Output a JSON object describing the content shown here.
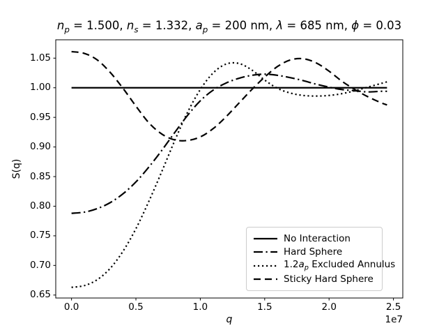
{
  "figure": {
    "background": "#ffffff",
    "title_segments": [
      {
        "t": "n",
        "i": true
      },
      {
        "t": "p",
        "i": true,
        "sub": true
      },
      {
        "t": " = 1.500, "
      },
      {
        "t": "n",
        "i": true
      },
      {
        "t": "s",
        "i": true,
        "sub": true
      },
      {
        "t": " = 1.332, "
      },
      {
        "t": "a",
        "i": true
      },
      {
        "t": "p",
        "i": true,
        "sub": true
      },
      {
        "t": " = 200 nm, "
      },
      {
        "t": "λ",
        "i": true
      },
      {
        "t": " = 685 nm, "
      },
      {
        "t": "ϕ",
        "i": true
      },
      {
        "t": " = 0.03"
      }
    ],
    "xlabel_segments": [
      {
        "t": "q",
        "i": true
      }
    ]
  },
  "chart_data": {
    "type": "line",
    "title": "n_p = 1.500, n_s = 1.332, a_p = 200 nm, λ = 685 nm, ϕ = 0.03",
    "xlabel": "q",
    "ylabel": "S(q)",
    "x_unit": "1e7",
    "xlim": [
      -0.1225,
      2.5725
    ],
    "ylim": [
      0.645,
      1.081
    ],
    "grid": false,
    "legend_position": "lower right",
    "line_color": "#000000",
    "xticks": {
      "values": [
        0,
        0.5,
        1.0,
        1.5,
        2.0,
        2.5
      ],
      "labels": [
        "0.0",
        "0.5",
        "1.0",
        "1.5",
        "2.0",
        "2.5"
      ]
    },
    "yticks": {
      "values": [
        0.65,
        0.7,
        0.75,
        0.8,
        0.85,
        0.9,
        0.95,
        1.0,
        1.05
      ],
      "labels": [
        "0.65",
        "0.70",
        "0.75",
        "0.80",
        "0.85",
        "0.90",
        "0.95",
        "1.00",
        "1.05"
      ]
    },
    "x": [
      0.0,
      0.1,
      0.2,
      0.3,
      0.4,
      0.5,
      0.6,
      0.7,
      0.8,
      0.9,
      1.0,
      1.1,
      1.2,
      1.3,
      1.4,
      1.5,
      1.6,
      1.7,
      1.8,
      1.9,
      2.0,
      2.1,
      2.2,
      2.3,
      2.4,
      2.45
    ],
    "series": [
      {
        "name": "No Interaction",
        "linestyle": "solid",
        "label_segments": [
          {
            "t": "No Interaction"
          }
        ],
        "values": [
          1.0,
          1.0,
          1.0,
          1.0,
          1.0,
          1.0,
          1.0,
          1.0,
          1.0,
          1.0,
          1.0,
          1.0,
          1.0,
          1.0,
          1.0,
          1.0,
          1.0,
          1.0,
          1.0,
          1.0,
          1.0,
          1.0,
          1.0,
          1.0,
          1.0,
          1.0
        ]
      },
      {
        "name": "Hard Sphere",
        "linestyle": "dashdot",
        "label_segments": [
          {
            "t": "Hard Sphere"
          }
        ],
        "values": [
          0.788,
          0.79,
          0.796,
          0.806,
          0.821,
          0.841,
          0.866,
          0.894,
          0.924,
          0.953,
          0.978,
          0.996,
          1.008,
          1.016,
          1.021,
          1.023,
          1.021,
          1.017,
          1.012,
          1.006,
          1.001,
          0.997,
          0.995,
          0.993,
          0.994,
          0.994
        ]
      },
      {
        "name": "1.2ap Excluded Annulus",
        "linestyle": "dotted",
        "label_segments": [
          {
            "t": "1.2"
          },
          {
            "t": "a",
            "i": true
          },
          {
            "t": "p",
            "i": true,
            "sub": true
          },
          {
            "t": " Excluded Annulus"
          }
        ],
        "values": [
          0.663,
          0.666,
          0.676,
          0.695,
          0.724,
          0.762,
          0.808,
          0.858,
          0.91,
          0.958,
          0.997,
          1.025,
          1.04,
          1.041,
          1.03,
          1.013,
          0.999,
          0.991,
          0.987,
          0.986,
          0.987,
          0.99,
          0.995,
          1.001,
          1.007,
          1.01
        ]
      },
      {
        "name": "Sticky Hard Sphere",
        "linestyle": "dashed",
        "label_segments": [
          {
            "t": "Sticky Hard Sphere"
          }
        ],
        "values": [
          1.061,
          1.058,
          1.047,
          1.026,
          0.999,
          0.969,
          0.941,
          0.922,
          0.912,
          0.911,
          0.917,
          0.931,
          0.951,
          0.974,
          0.997,
          1.018,
          1.036,
          1.047,
          1.049,
          1.042,
          1.028,
          1.011,
          0.997,
          0.985,
          0.975,
          0.971
        ]
      }
    ]
  }
}
